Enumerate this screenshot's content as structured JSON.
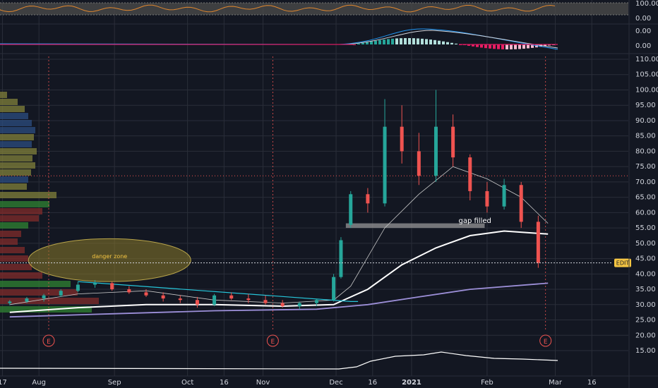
{
  "chart_data": {
    "type": "candlestick",
    "price_pane": {
      "y_ticks": [
        "110.00",
        "105.00",
        "100.00",
        "95.00",
        "90.00",
        "85.00",
        "80.00",
        "75.00",
        "70.00",
        "65.00",
        "60.00",
        "55.00",
        "50.00",
        "45.00",
        "40.00",
        "35.00",
        "30.00",
        "25.00",
        "20.00",
        "15.00"
      ],
      "ylim": [
        15,
        110
      ],
      "last_price_label": "EDIT",
      "last_price": 43.6,
      "annotations": [
        {
          "text": "danger zone",
          "x_date": "2020-08-30",
          "y": 44.5
        },
        {
          "text": "gap filled",
          "x_date": "2021-01-27",
          "y": 57.5
        }
      ],
      "gap_zone": {
        "from_date": "2020-12-05",
        "to_date": "2021-01-31",
        "y_low": 55,
        "y_high": 56.5
      },
      "danger_zone": {
        "center_date": "2020-08-30",
        "center_y": 44.5,
        "y_half": 7
      },
      "earnings_markers": {
        "label": "E",
        "dates": [
          "2020-08-05",
          "2020-11-05",
          "2021-02-25"
        ]
      },
      "ohlc": [
        [
          "2020-07-20",
          30.5,
          31.5,
          29.8,
          31.0
        ],
        [
          "2020-07-27",
          31.0,
          32.5,
          30.5,
          32.0
        ],
        [
          "2020-08-03",
          32.0,
          33.5,
          31.0,
          33.0
        ],
        [
          "2020-08-10",
          33.0,
          35.0,
          32.5,
          34.5
        ],
        [
          "2020-08-17",
          34.5,
          37.5,
          34.0,
          36.5
        ],
        [
          "2020-08-24",
          36.5,
          38.0,
          35.5,
          37.0
        ],
        [
          "2020-08-31",
          37.0,
          37.5,
          34.5,
          35.0
        ],
        [
          "2020-09-07",
          35.0,
          36.0,
          33.5,
          34.0
        ],
        [
          "2020-09-14",
          34.0,
          35.0,
          32.5,
          33.0
        ],
        [
          "2020-09-21",
          33.0,
          34.0,
          31.0,
          32.0
        ],
        [
          "2020-09-28",
          32.0,
          33.0,
          30.5,
          31.5
        ],
        [
          "2020-10-05",
          31.5,
          32.5,
          29.0,
          30.0
        ],
        [
          "2020-10-12",
          30.0,
          33.5,
          29.5,
          33.0
        ],
        [
          "2020-10-19",
          33.0,
          34.0,
          31.5,
          32.0
        ],
        [
          "2020-10-26",
          32.0,
          33.5,
          30.5,
          31.5
        ],
        [
          "2020-11-02",
          31.5,
          33.0,
          30.0,
          30.5
        ],
        [
          "2020-11-09",
          30.5,
          31.5,
          29.0,
          29.5
        ],
        [
          "2020-11-16",
          29.5,
          31.0,
          28.5,
          30.5
        ],
        [
          "2020-11-23",
          30.5,
          32.0,
          29.5,
          31.5
        ],
        [
          "2020-11-30",
          31.5,
          40.0,
          31.0,
          39.0
        ],
        [
          "2020-12-03",
          39.0,
          52.0,
          38.5,
          51.0
        ],
        [
          "2020-12-07",
          56.0,
          67.0,
          55.0,
          66.0
        ],
        [
          "2020-12-14",
          66.0,
          68.0,
          60.0,
          63.0
        ],
        [
          "2020-12-21",
          63.0,
          97.0,
          62.0,
          88.0
        ],
        [
          "2020-12-28",
          88.0,
          95.0,
          76.0,
          80.0
        ],
        [
          "2021-01-04",
          80.0,
          86.0,
          69.0,
          72.0
        ],
        [
          "2021-01-11",
          72.0,
          100.0,
          70.0,
          88.0
        ],
        [
          "2021-01-18",
          88.0,
          92.0,
          75.0,
          78.0
        ],
        [
          "2021-01-25",
          78.0,
          79.0,
          64.0,
          67.0
        ],
        [
          "2021-02-01",
          67.0,
          70.0,
          60.0,
          62.0
        ],
        [
          "2021-02-08",
          62.0,
          71.0,
          61.0,
          69.0
        ],
        [
          "2021-02-15",
          69.0,
          70.0,
          55.0,
          57.0
        ],
        [
          "2021-02-22",
          57.0,
          59.0,
          42.0,
          43.6
        ]
      ],
      "ma_thin_white": [
        [
          "2020-07-20",
          30.0
        ],
        [
          "2020-08-17",
          33.5
        ],
        [
          "2020-09-14",
          34.5
        ],
        [
          "2020-10-12",
          31.5
        ],
        [
          "2020-11-09",
          30.5
        ],
        [
          "2020-11-30",
          31.5
        ],
        [
          "2020-12-07",
          36.0
        ],
        [
          "2020-12-21",
          55.0
        ],
        [
          "2021-01-04",
          66.0
        ],
        [
          "2021-01-18",
          75.0
        ],
        [
          "2021-02-01",
          71.0
        ],
        [
          "2021-02-15",
          65.0
        ],
        [
          "2021-02-26",
          56.5
        ]
      ],
      "ma_thick_white": [
        [
          "2020-07-20",
          27.5
        ],
        [
          "2020-08-17",
          29.0
        ],
        [
          "2020-09-14",
          30.0
        ],
        [
          "2020-10-12",
          30.0
        ],
        [
          "2020-11-09",
          29.5
        ],
        [
          "2020-11-30",
          30.0
        ],
        [
          "2020-12-14",
          35.0
        ],
        [
          "2020-12-28",
          43.0
        ],
        [
          "2021-01-11",
          48.5
        ],
        [
          "2021-01-25",
          52.5
        ],
        [
          "2021-02-08",
          54.0
        ],
        [
          "2021-02-26",
          53.0
        ]
      ],
      "ma_purple": [
        [
          "2020-07-20",
          26.0
        ],
        [
          "2020-08-31",
          27.0
        ],
        [
          "2020-10-12",
          28.0
        ],
        [
          "2020-11-23",
          28.5
        ],
        [
          "2020-12-14",
          30.0
        ],
        [
          "2021-01-04",
          32.5
        ],
        [
          "2021-01-25",
          35.0
        ],
        [
          "2021-02-26",
          37.0
        ]
      ]
    },
    "rsi_pane": {
      "y_ticks": [
        "100.00",
        "0.00"
      ]
    },
    "macd_pane": {
      "y_ticks": [
        "0.00"
      ]
    },
    "x_ticks": [
      {
        "label": "17",
        "date": "2020-07-17"
      },
      {
        "label": "Aug",
        "date": "2020-08-01"
      },
      {
        "label": "Sep",
        "date": "2020-09-01"
      },
      {
        "label": "Oct",
        "date": "2020-10-01"
      },
      {
        "label": "16",
        "date": "2020-10-16"
      },
      {
        "label": "Nov",
        "date": "2020-11-01"
      },
      {
        "label": "Dec",
        "date": "2020-12-01"
      },
      {
        "label": "16",
        "date": "2020-12-16"
      },
      {
        "label": "2021",
        "date": "2021-01-01",
        "bold": true
      },
      {
        "label": "Feb",
        "date": "2021-02-01"
      },
      {
        "label": "Mar",
        "date": "2021-03-01"
      },
      {
        "label": "16",
        "date": "2021-03-16"
      }
    ],
    "x_range": [
      "2020-07-16",
      "2021-03-31"
    ],
    "colors": {
      "up": "#26a69a",
      "down": "#ef5350",
      "background": "#131722",
      "grid": "#2a2e39",
      "ma_purple": "#9c8fd8",
      "accent_label": "#f5c542",
      "earnings": "#ef5350"
    }
  }
}
